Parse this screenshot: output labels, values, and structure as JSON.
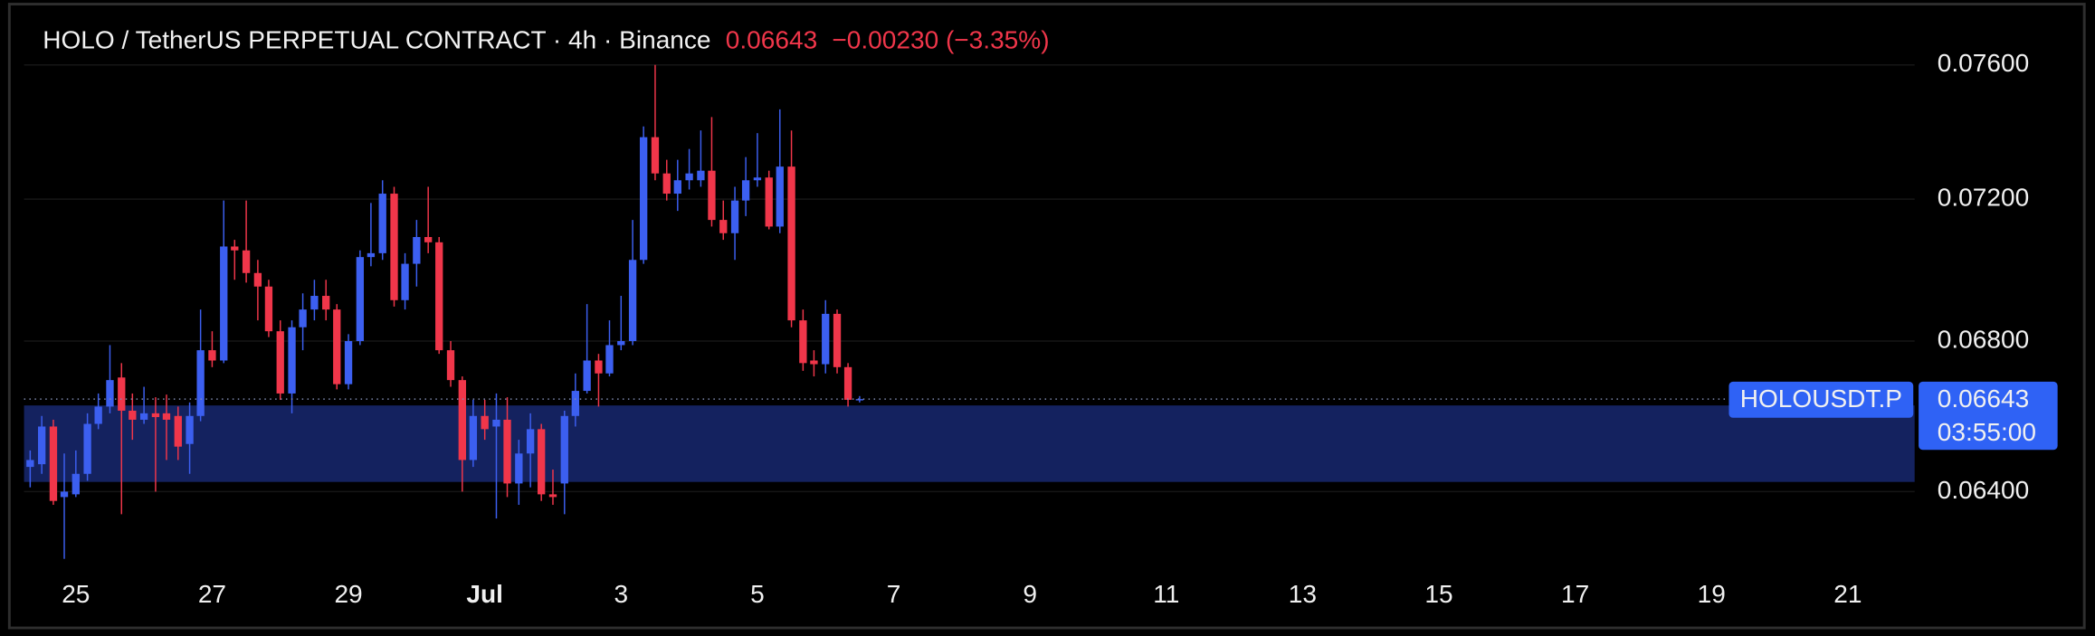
{
  "chart_data": {
    "type": "candlestick",
    "title": "HOLO / TetherUS PERPETUAL CONTRACT · 4h · Binance",
    "last_price": 0.06643,
    "change_label": "−0.00230 (−3.35%)",
    "symbol": "HOLOUSDT.P",
    "countdown": "03:55:00",
    "x": [
      24.33,
      24.5,
      24.67,
      24.83,
      25,
      25.17,
      25.33,
      25.5,
      25.67,
      25.83,
      26,
      26.17,
      26.33,
      26.5,
      26.67,
      26.83,
      27,
      27.17,
      27.33,
      27.5,
      27.67,
      27.83,
      28,
      28.17,
      28.33,
      28.5,
      28.67,
      28.83,
      29,
      29.17,
      29.33,
      29.5,
      29.67,
      29.83,
      30,
      30.17,
      30.33,
      30.5,
      30.67,
      30.83,
      31,
      31.17,
      31.33,
      31.5,
      31.67,
      31.83,
      32,
      32.17,
      32.33,
      32.5,
      32.67,
      32.83,
      33,
      33.17,
      33.33,
      33.5,
      33.67,
      33.83,
      34,
      34.17,
      34.33,
      34.5,
      34.67,
      34.83,
      35,
      35.17,
      35.33,
      35.5,
      35.67,
      35.83,
      36,
      36.17,
      36.33,
      36.5
    ],
    "open": [
      0.06464,
      0.06471,
      0.0657,
      0.06386,
      0.06393,
      0.06446,
      0.06577,
      0.06623,
      0.06701,
      0.06612,
      0.06588,
      0.06605,
      0.06605,
      0.06598,
      0.06524,
      0.06598,
      0.06775,
      0.06747,
      0.07064,
      0.07053,
      0.06989,
      0.06951,
      0.06827,
      0.06658,
      0.06838,
      0.06887,
      0.06925,
      0.06887,
      0.06683,
      0.068,
      0.07034,
      0.07045,
      0.07216,
      0.06913,
      0.07015,
      0.07091,
      0.07076,
      0.06775,
      0.06694,
      0.06482,
      0.06598,
      0.0657,
      0.06588,
      0.06421,
      0.06499,
      0.06563,
      0.06393,
      0.06421,
      0.06598,
      0.06665,
      0.06747,
      0.06712,
      0.06789,
      0.068,
      0.07026,
      0.07382,
      0.07275,
      0.07216,
      0.07255,
      0.07255,
      0.07283,
      0.0714,
      0.07102,
      0.07196,
      0.07255,
      0.07263,
      0.07121,
      0.07295,
      0.06857,
      0.06747,
      0.06737,
      0.06875,
      0.06729,
      0.06641
    ],
    "high": [
      0.06507,
      0.06598,
      0.06588,
      0.06499,
      0.06507,
      0.06605,
      0.06658,
      0.06789,
      0.0674,
      0.06658,
      0.06676,
      0.06648,
      0.06655,
      0.06623,
      0.06634,
      0.06887,
      0.06827,
      0.07196,
      0.07083,
      0.07196,
      0.07026,
      0.0697,
      0.06857,
      0.06857,
      0.06932,
      0.0697,
      0.0697,
      0.06902,
      0.06819,
      0.07053,
      0.07189,
      0.07255,
      0.07236,
      0.07045,
      0.0714,
      0.07236,
      0.07091,
      0.068,
      0.06704,
      0.06641,
      0.06641,
      0.06658,
      0.06648,
      0.06535,
      0.06605,
      0.06577,
      0.06457,
      0.06612,
      0.06712,
      0.06902,
      0.06765,
      0.06857,
      0.06925,
      0.0714,
      0.07414,
      0.076,
      0.07315,
      0.07315,
      0.07347,
      0.07402,
      0.07442,
      0.07196,
      0.07236,
      0.07323,
      0.07394,
      0.07283,
      0.07465,
      0.07402,
      0.06887,
      0.06775,
      0.06913,
      0.06887,
      0.0674,
      0.06651
    ],
    "low": [
      0.06411,
      0.06446,
      0.06366,
      0.06229,
      0.06386,
      0.06428,
      0.06563,
      0.06605,
      0.06342,
      0.06535,
      0.06577,
      0.064,
      0.06482,
      0.06482,
      0.06446,
      0.06584,
      0.06729,
      0.0674,
      0.0697,
      0.06962,
      0.06857,
      0.06811,
      0.06641,
      0.06605,
      0.06775,
      0.06857,
      0.06857,
      0.06669,
      0.06669,
      0.06789,
      0.07008,
      0.07026,
      0.06895,
      0.06887,
      0.06951,
      0.07045,
      0.06765,
      0.06676,
      0.064,
      0.06464,
      0.06535,
      0.06331,
      0.06386,
      0.06366,
      0.06411,
      0.06376,
      0.06366,
      0.06342,
      0.0657,
      0.06658,
      0.06623,
      0.06704,
      0.06775,
      0.06789,
      0.07015,
      0.07255,
      0.07196,
      0.07166,
      0.07228,
      0.07236,
      0.07121,
      0.07083,
      0.07026,
      0.07151,
      0.07236,
      0.07113,
      0.07102,
      0.06838,
      0.06719,
      0.06704,
      0.06712,
      0.06712,
      0.06623,
      0.06634
    ],
    "close": [
      0.06482,
      0.0657,
      0.06376,
      0.064,
      0.06446,
      0.06577,
      0.06623,
      0.06694,
      0.06612,
      0.06588,
      0.06605,
      0.06595,
      0.06588,
      0.06517,
      0.06598,
      0.06775,
      0.06747,
      0.07064,
      0.07053,
      0.06989,
      0.06951,
      0.06827,
      0.06658,
      0.06838,
      0.06887,
      0.06925,
      0.06887,
      0.06683,
      0.068,
      0.07034,
      0.07045,
      0.07216,
      0.06913,
      0.07015,
      0.07091,
      0.07076,
      0.06775,
      0.06694,
      0.06482,
      0.06598,
      0.06563,
      0.06588,
      0.06421,
      0.06499,
      0.06563,
      0.06393,
      0.06386,
      0.06598,
      0.06665,
      0.06747,
      0.06712,
      0.06789,
      0.068,
      0.07026,
      0.07382,
      0.07275,
      0.07216,
      0.07255,
      0.07275,
      0.07283,
      0.0714,
      0.07102,
      0.07196,
      0.07255,
      0.07263,
      0.07121,
      0.07295,
      0.06857,
      0.0674,
      0.06737,
      0.06875,
      0.06729,
      0.06641,
      0.06643
    ],
    "up_color": "#3c5ff0",
    "down_color": "#f0364a",
    "zone": {
      "low": 0.06425,
      "high": 0.06626,
      "color": "#14225f"
    },
    "ylim": [
      0.0619,
      0.0778
    ],
    "log_y": true,
    "yticks": [
      {
        "value": 0.064,
        "label": "0.06400"
      },
      {
        "value": 0.068,
        "label": "0.06800"
      },
      {
        "value": 0.072,
        "label": "0.07200"
      },
      {
        "value": 0.076,
        "label": "0.07600"
      }
    ],
    "xlim": [
      24.24,
      51.98
    ],
    "xticks": [
      25,
      27,
      29,
      {
        "value": 31,
        "label": "Jul"
      },
      {
        "value": 33,
        "label": "3"
      },
      {
        "value": 35,
        "label": "5"
      },
      {
        "value": 37,
        "label": "7"
      },
      {
        "value": 39,
        "label": "9"
      },
      {
        "value": 41,
        "label": "11"
      },
      {
        "value": 43,
        "label": "13"
      },
      {
        "value": 45,
        "label": "15"
      },
      {
        "value": 47,
        "label": "17"
      },
      {
        "value": 49,
        "label": "19"
      },
      {
        "value": 51,
        "label": "21"
      }
    ],
    "grid": true
  }
}
